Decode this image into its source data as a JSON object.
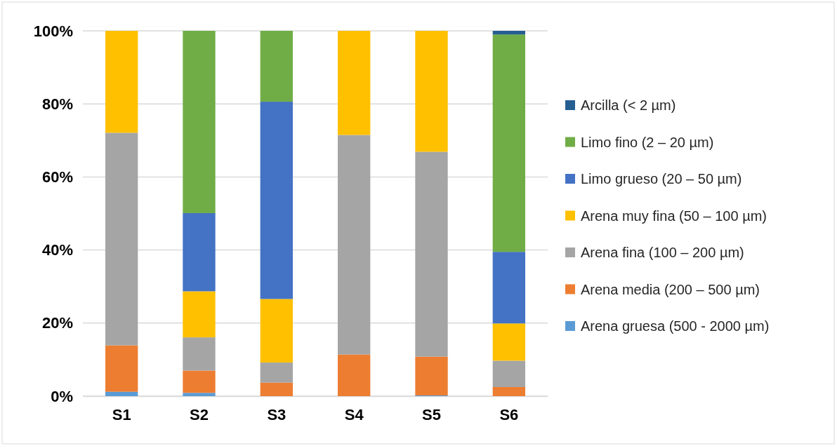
{
  "chart_data": {
    "type": "bar",
    "stacked": true,
    "categories": [
      "S1",
      "S2",
      "S3",
      "S4",
      "S5",
      "S6"
    ],
    "series": [
      {
        "name": "Arena gruesa (500 - 2000 µm)",
        "color": "#5b9bd5",
        "values": [
          1.2,
          0.9,
          0,
          0,
          0.2,
          0
        ]
      },
      {
        "name": "Arena media (200 – 500 µm)",
        "color": "#ed7d31",
        "values": [
          12.7,
          6.1,
          3.7,
          11.4,
          10.6,
          2.5
        ]
      },
      {
        "name": "Arena fina (100 – 200 µm)",
        "color": "#a5a5a5",
        "values": [
          58.2,
          9.1,
          5.5,
          60.1,
          56.1,
          7.2
        ]
      },
      {
        "name": "Arena muy fina (50 – 100 µm)",
        "color": "#ffc000",
        "values": [
          27.9,
          12.6,
          17.4,
          28.5,
          33.1,
          10.2
        ]
      },
      {
        "name": "Limo grueso (20 – 50 µm)",
        "color": "#4472c4",
        "values": [
          0,
          21.4,
          54.0,
          0,
          0,
          19.6
        ]
      },
      {
        "name": "Limo fino (2 – 20 µm)",
        "color": "#70ad47",
        "values": [
          0,
          49.9,
          19.4,
          0,
          0,
          59.5
        ]
      },
      {
        "name": "Arcilla (< 2 µm)",
        "color": "#255e91",
        "values": [
          0,
          0,
          0,
          0,
          0,
          1.0
        ]
      }
    ],
    "ylim": [
      0,
      100
    ],
    "yticks": [
      {
        "value": 0,
        "label": "0%"
      },
      {
        "value": 20,
        "label": "20%"
      },
      {
        "value": 40,
        "label": "40%"
      },
      {
        "value": 60,
        "label": "60%"
      },
      {
        "value": 80,
        "label": "80%"
      },
      {
        "value": 100,
        "label": "100%"
      }
    ],
    "grid": "y",
    "legend": "right"
  }
}
